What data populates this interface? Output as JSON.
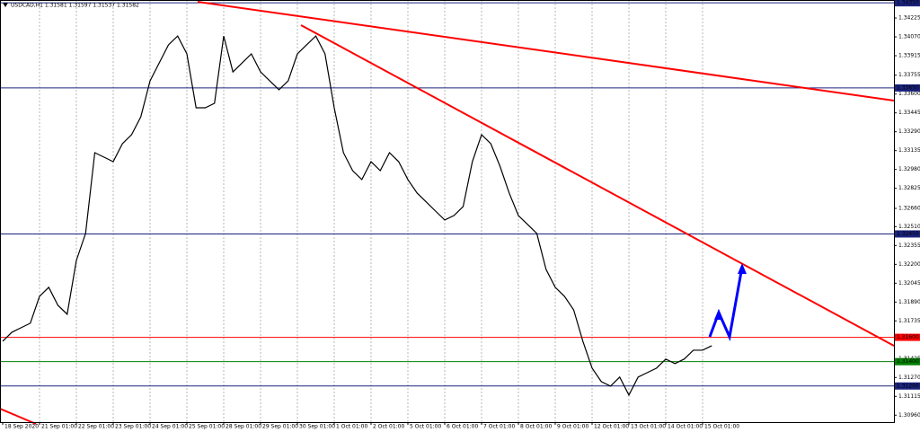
{
  "chart_data": {
    "type": "line",
    "title": "USDCAD,H1  1.31581 1.31597 1.31537 1.31582",
    "color": "#000000",
    "categories": [
      "18 Sep 2020",
      null,
      null,
      null,
      "21 Sep 01:00",
      null,
      null,
      null,
      "22 Sep 01:00",
      null,
      null,
      null,
      "23 Sep 01:00",
      null,
      null,
      null,
      "24 Sep 01:00",
      null,
      null,
      null,
      "25 Sep 01:00",
      null,
      null,
      null,
      "28 Sep 01:00",
      null,
      null,
      null,
      "29 Sep 01:00",
      null,
      null,
      null,
      "30 Sep 01:00",
      null,
      null,
      null,
      "1 Oct 01:00",
      null,
      null,
      null,
      "2 Oct 01:00",
      null,
      null,
      null,
      "5 Oct 01:00",
      null,
      null,
      null,
      "6 Oct 01:00",
      null,
      null,
      null,
      "7 Oct 01:00",
      null,
      null,
      null,
      "8 Oct 01:00",
      null,
      null,
      null,
      "9 Oct 01:00",
      null,
      null,
      null,
      "12 Oct 01:00",
      null,
      null,
      null,
      "13 Oct 01:00",
      null,
      null,
      null,
      "14 Oct 01:00",
      null,
      null,
      null,
      "15 Oct 01:00",
      null
    ],
    "values": [
      1.31568,
      1.31642,
      1.31679,
      1.31716,
      1.31937,
      1.32011,
      1.31863,
      1.3179,
      1.32232,
      1.32454,
      1.33118,
      1.33081,
      1.33044,
      1.33192,
      1.33266,
      1.33413,
      1.33708,
      1.33856,
      1.34004,
      1.34077,
      1.3393,
      1.33487,
      1.33487,
      1.33524,
      1.34077,
      1.33782,
      1.33856,
      1.3393,
      1.33782,
      1.33708,
      1.33635,
      1.33708,
      1.3393,
      1.34004,
      1.34077,
      1.3393,
      1.33487,
      1.33118,
      1.3297,
      1.32897,
      1.33044,
      1.3297,
      1.33118,
      1.33044,
      1.32897,
      1.32786,
      1.32712,
      1.32638,
      1.32565,
      1.32601,
      1.32675,
      1.33044,
      1.33266,
      1.33192,
      1.33007,
      1.32786,
      1.32601,
      1.32528,
      1.32454,
      1.32159,
      1.32011,
      1.31937,
      1.31826,
      1.31568,
      1.31347,
      1.31236,
      1.31199,
      1.31273,
      1.31125,
      1.31273,
      1.3131,
      1.31347,
      1.31421,
      1.31384,
      1.31421,
      1.31494,
      1.31494,
      1.31531
    ],
    "ylim": [
      1.30903,
      1.34373
    ],
    "yticks": [
      1.34225,
      {
        "value": 1.3407,
        "label": "1.34070"
      },
      1.33915,
      1.33755,
      {
        "value": 1.336,
        "label": "1.33600"
      },
      1.33445,
      {
        "value": 1.3329,
        "label": "1.33290"
      },
      1.33135,
      {
        "value": 1.3298,
        "label": "1.32980"
      },
      1.32825,
      {
        "value": 1.3266,
        "label": "1.32660"
      },
      {
        "value": 1.3251,
        "label": "1.32510"
      },
      1.32355,
      {
        "value": 1.322,
        "label": "1.32200"
      },
      1.32045,
      {
        "value": 1.3189,
        "label": "1.31890"
      },
      1.31735,
      1.31425,
      {
        "value": 1.3127,
        "label": "1.31270"
      },
      1.31115,
      {
        "value": 1.3096,
        "label": "1.30960"
      }
    ],
    "levels": [
      {
        "value": 1.3435,
        "label": "1.34350",
        "color": "#1a237e"
      },
      {
        "value": 1.3365,
        "label": "1.33650",
        "color": "#1a237e"
      },
      {
        "value": 1.3245,
        "label": "1.32450",
        "color": "#1a237e"
      },
      {
        "value": 1.316,
        "label": "1.31600",
        "color": "#ff0000"
      },
      {
        "value": 1.314,
        "label": "1.31400",
        "color": "#008000"
      },
      {
        "value": 1.312,
        "label": "1.31200",
        "color": "#1a237e"
      }
    ],
    "grid": true
  }
}
